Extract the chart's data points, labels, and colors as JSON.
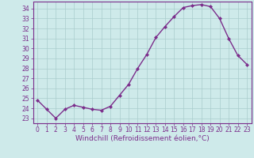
{
  "x": [
    0,
    1,
    2,
    3,
    4,
    5,
    6,
    7,
    8,
    9,
    10,
    11,
    12,
    13,
    14,
    15,
    16,
    17,
    18,
    19,
    20,
    21,
    22,
    23
  ],
  "y": [
    24.8,
    23.9,
    23.0,
    23.9,
    24.3,
    24.1,
    23.9,
    23.8,
    24.2,
    25.3,
    26.4,
    28.0,
    29.4,
    31.1,
    32.2,
    33.2,
    34.1,
    34.3,
    34.4,
    34.2,
    33.0,
    31.0,
    29.3,
    28.4
  ],
  "line_color": "#7b2d8b",
  "marker": "D",
  "marker_size": 2.0,
  "bg_color": "#ceeaea",
  "grid_color": "#aacccc",
  "xlim": [
    -0.5,
    23.5
  ],
  "ylim": [
    22.5,
    34.7
  ],
  "yticks": [
    23,
    24,
    25,
    26,
    27,
    28,
    29,
    30,
    31,
    32,
    33,
    34
  ],
  "xticks": [
    0,
    1,
    2,
    3,
    4,
    5,
    6,
    7,
    8,
    9,
    10,
    11,
    12,
    13,
    14,
    15,
    16,
    17,
    18,
    19,
    20,
    21,
    22,
    23
  ],
  "tick_color": "#7b2d8b",
  "tick_fontsize": 5.5,
  "xlabel": "Windchill (Refroidissement éolien,°C)",
  "xlabel_fontsize": 6.5,
  "spine_color": "#7b2d8b",
  "linewidth": 1.0
}
